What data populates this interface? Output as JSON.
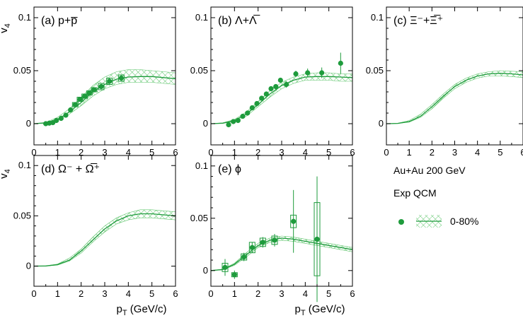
{
  "colors": {
    "data": "#1e9b3c",
    "band": "#5cc46a"
  },
  "axis_labels": {
    "ylabel": "v",
    "ylabel_sub": "4",
    "xlabel_main": "p",
    "xlabel_sub": "T",
    "xlabel_unit": " (GeV/c)"
  },
  "legend": {
    "system": "Au+Au 200 GeV",
    "header": "Exp QCM",
    "entry": "0-80%"
  },
  "chart_data": [
    {
      "type": "scatter",
      "panel": "a",
      "label": "(a) p+p̅",
      "xlim": [
        0,
        6
      ],
      "ylim": [
        -0.02,
        0.11
      ],
      "xticks": [
        0,
        1,
        2,
        3,
        4,
        5,
        6
      ],
      "yticks": [
        0,
        0.05,
        0.1
      ],
      "ytick_labels": [
        "0",
        "0.05",
        "0.1"
      ],
      "points": [
        {
          "x": 0.5,
          "y": 0.0,
          "err": 0.001,
          "sys": 0
        },
        {
          "x": 0.65,
          "y": 0.0005,
          "err": 0.001,
          "sys": 0
        },
        {
          "x": 0.8,
          "y": 0.001,
          "err": 0.001,
          "sys": 0
        },
        {
          "x": 0.95,
          "y": 0.003,
          "err": 0.001,
          "sys": 0
        },
        {
          "x": 1.15,
          "y": 0.005,
          "err": 0.001,
          "sys": 0
        },
        {
          "x": 1.35,
          "y": 0.008,
          "err": 0.001,
          "sys": 0
        },
        {
          "x": 1.55,
          "y": 0.013,
          "err": 0.001,
          "sys": 0
        },
        {
          "x": 1.75,
          "y": 0.018,
          "err": 0.001,
          "sys": 0.002
        },
        {
          "x": 1.95,
          "y": 0.023,
          "err": 0.001,
          "sys": 0.002
        },
        {
          "x": 2.15,
          "y": 0.026,
          "err": 0.001,
          "sys": 0.002
        },
        {
          "x": 2.35,
          "y": 0.029,
          "err": 0.002,
          "sys": 0.002
        },
        {
          "x": 2.55,
          "y": 0.032,
          "err": 0.002,
          "sys": 0.002
        },
        {
          "x": 2.85,
          "y": 0.035,
          "err": 0.002,
          "sys": 0.003
        },
        {
          "x": 3.2,
          "y": 0.04,
          "err": 0.003,
          "sys": 0.003
        },
        {
          "x": 3.7,
          "y": 0.043,
          "err": 0.003,
          "sys": 0.003
        }
      ],
      "curve": {
        "x": [
          0,
          0.5,
          1,
          1.5,
          2,
          2.5,
          3,
          3.5,
          4,
          4.5,
          5,
          5.5,
          6
        ],
        "y": [
          0,
          0.0008,
          0.004,
          0.011,
          0.02,
          0.03,
          0.037,
          0.042,
          0.044,
          0.0445,
          0.0445,
          0.0435,
          0.0425
        ]
      },
      "band": {
        "x": [
          0,
          0.5,
          1,
          1.5,
          2,
          2.5,
          3,
          3.5,
          4,
          4.5,
          5,
          5.5,
          6
        ],
        "lo": [
          0,
          0.0005,
          0.003,
          0.009,
          0.017,
          0.026,
          0.033,
          0.037,
          0.039,
          0.039,
          0.039,
          0.038,
          0.037
        ],
        "hi": [
          0,
          0.0012,
          0.006,
          0.014,
          0.025,
          0.036,
          0.044,
          0.049,
          0.051,
          0.051,
          0.05,
          0.049,
          0.048
        ]
      }
    },
    {
      "type": "scatter",
      "panel": "b",
      "label": "(b) Λ+Λ̅",
      "xlim": [
        0,
        6
      ],
      "ylim": [
        -0.02,
        0.11
      ],
      "xticks": [
        0,
        1,
        2,
        3,
        4,
        5,
        6
      ],
      "yticks": [
        0,
        0.05,
        0.1
      ],
      "ytick_labels": [
        "0",
        "0.05",
        "0.1"
      ],
      "points": [
        {
          "x": 0.75,
          "y": -0.001,
          "err": 0.002,
          "sys": 0
        },
        {
          "x": 0.95,
          "y": 0.002,
          "err": 0.001,
          "sys": 0
        },
        {
          "x": 1.15,
          "y": 0.003,
          "err": 0.001,
          "sys": 0
        },
        {
          "x": 1.35,
          "y": 0.007,
          "err": 0.001,
          "sys": 0
        },
        {
          "x": 1.55,
          "y": 0.01,
          "err": 0.001,
          "sys": 0
        },
        {
          "x": 1.75,
          "y": 0.015,
          "err": 0.001,
          "sys": 0
        },
        {
          "x": 1.95,
          "y": 0.019,
          "err": 0.001,
          "sys": 0
        },
        {
          "x": 2.15,
          "y": 0.024,
          "err": 0.001,
          "sys": 0
        },
        {
          "x": 2.35,
          "y": 0.028,
          "err": 0.001,
          "sys": 0
        },
        {
          "x": 2.55,
          "y": 0.033,
          "err": 0.001,
          "sys": 0
        },
        {
          "x": 2.75,
          "y": 0.035,
          "err": 0.002,
          "sys": 0
        },
        {
          "x": 2.95,
          "y": 0.041,
          "err": 0.002,
          "sys": 0
        },
        {
          "x": 3.2,
          "y": 0.037,
          "err": 0.003,
          "sys": 0
        },
        {
          "x": 3.6,
          "y": 0.047,
          "err": 0.003,
          "sys": 0
        },
        {
          "x": 4.1,
          "y": 0.048,
          "err": 0.004,
          "sys": 0
        },
        {
          "x": 4.7,
          "y": 0.048,
          "err": 0.005,
          "sys": 0
        },
        {
          "x": 5.5,
          "y": 0.057,
          "err": 0.01,
          "sys": 0
        }
      ],
      "curve": {
        "x": [
          0,
          0.5,
          1,
          1.5,
          2,
          2.5,
          3,
          3.5,
          4,
          4.5,
          5,
          5.5,
          6
        ],
        "y": [
          0,
          0.0005,
          0.003,
          0.009,
          0.018,
          0.028,
          0.036,
          0.041,
          0.044,
          0.0445,
          0.0445,
          0.044,
          0.0435
        ]
      },
      "band": {
        "x": [
          0,
          0.5,
          1,
          1.5,
          2,
          2.5,
          3,
          3.5,
          4,
          4.5,
          5,
          5.5,
          6
        ],
        "lo": [
          0,
          0.0003,
          0.002,
          0.007,
          0.016,
          0.025,
          0.033,
          0.038,
          0.041,
          0.041,
          0.041,
          0.04,
          0.04
        ],
        "hi": [
          0,
          0.0008,
          0.004,
          0.011,
          0.021,
          0.031,
          0.039,
          0.044,
          0.047,
          0.048,
          0.048,
          0.047,
          0.047
        ]
      }
    },
    {
      "type": "line",
      "panel": "c",
      "label": "(c) Ξ⁻+Ξ̅⁺",
      "xlim": [
        0,
        6
      ],
      "ylim": [
        -0.02,
        0.11
      ],
      "xticks": [
        0,
        1,
        2,
        3,
        4,
        5,
        6
      ],
      "yticks": [
        0,
        0.05,
        0.1
      ],
      "ytick_labels": [
        "0",
        "0.05",
        "0.1"
      ],
      "points": [],
      "curve": {
        "x": [
          0,
          0.5,
          1,
          1.5,
          2,
          2.5,
          3,
          3.5,
          4,
          4.5,
          5,
          5.5,
          6
        ],
        "y": [
          0,
          0.0003,
          0.002,
          0.007,
          0.016,
          0.026,
          0.035,
          0.041,
          0.045,
          0.047,
          0.0475,
          0.047,
          0.046
        ]
      },
      "band": {
        "x": [
          0,
          0.5,
          1,
          1.5,
          2,
          2.5,
          3,
          3.5,
          4,
          4.5,
          5,
          5.5,
          6
        ],
        "lo": [
          0,
          0.0002,
          0.0015,
          0.006,
          0.014,
          0.024,
          0.033,
          0.039,
          0.043,
          0.045,
          0.045,
          0.0445,
          0.0435
        ],
        "hi": [
          0,
          0.0005,
          0.003,
          0.009,
          0.018,
          0.028,
          0.037,
          0.043,
          0.047,
          0.049,
          0.05,
          0.0495,
          0.049
        ]
      }
    },
    {
      "type": "line",
      "panel": "d",
      "label": "(d) Ω⁻ + Ω̅⁺",
      "xlim": [
        0,
        6
      ],
      "ylim": [
        -0.02,
        0.11
      ],
      "xticks": [
        0,
        1,
        2,
        3,
        4,
        5,
        6
      ],
      "yticks": [
        0,
        0.05,
        0.1
      ],
      "ytick_labels": [
        "0",
        "0.05",
        "0.1"
      ],
      "points": [],
      "curve": {
        "x": [
          0,
          0.5,
          1,
          1.5,
          2,
          2.5,
          3,
          3.5,
          4,
          4.5,
          5,
          5.5,
          6
        ],
        "y": [
          0,
          0.0002,
          0.0015,
          0.006,
          0.015,
          0.026,
          0.037,
          0.045,
          0.05,
          0.052,
          0.052,
          0.051,
          0.05
        ]
      },
      "band": {
        "x": [
          0,
          0.5,
          1,
          1.5,
          2,
          2.5,
          3,
          3.5,
          4,
          4.5,
          5,
          5.5,
          6
        ],
        "lo": [
          0,
          0.0001,
          0.001,
          0.005,
          0.013,
          0.024,
          0.034,
          0.042,
          0.046,
          0.048,
          0.048,
          0.047,
          0.046
        ],
        "hi": [
          0,
          0.0004,
          0.002,
          0.008,
          0.017,
          0.029,
          0.04,
          0.048,
          0.053,
          0.056,
          0.056,
          0.055,
          0.054
        ]
      }
    },
    {
      "type": "scatter",
      "panel": "e",
      "label": "(e) ϕ",
      "xlim": [
        0,
        6
      ],
      "ylim": [
        -0.015,
        0.11
      ],
      "xticks": [
        0,
        1,
        2,
        3,
        4,
        5,
        6
      ],
      "yticks": [
        0,
        0.05,
        0.1
      ],
      "ytick_labels": [
        "0",
        "0.05",
        "0.1"
      ],
      "points": [
        {
          "x": 0.6,
          "y": 0.003,
          "err": 0.008,
          "sys": 0.004
        },
        {
          "x": 1.0,
          "y": -0.004,
          "err": 0.004,
          "sys": 0.002
        },
        {
          "x": 1.4,
          "y": 0.013,
          "err": 0.004,
          "sys": 0.003
        },
        {
          "x": 1.75,
          "y": 0.022,
          "err": 0.005,
          "sys": 0.005
        },
        {
          "x": 2.2,
          "y": 0.027,
          "err": 0.005,
          "sys": 0.004
        },
        {
          "x": 2.7,
          "y": 0.029,
          "err": 0.006,
          "sys": 0.004
        },
        {
          "x": 3.5,
          "y": 0.047,
          "err": 0.03,
          "sys": 0.006
        },
        {
          "x": 4.5,
          "y": 0.03,
          "err": 0.06,
          "sys": 0.035
        }
      ],
      "curve": {
        "x": [
          0,
          0.5,
          1,
          1.5,
          2,
          2.5,
          3,
          3.5,
          4,
          4.5,
          5,
          5.5,
          6
        ],
        "y": [
          0,
          0.001,
          0.006,
          0.015,
          0.024,
          0.029,
          0.031,
          0.03,
          0.028,
          0.026,
          0.024,
          0.022,
          0.02
        ]
      },
      "band": {
        "x": [
          0,
          0.5,
          1,
          1.5,
          2,
          2.5,
          3,
          3.5,
          4,
          4.5,
          5,
          5.5,
          6
        ],
        "lo": [
          0,
          0.0007,
          0.005,
          0.013,
          0.022,
          0.027,
          0.029,
          0.028,
          0.026,
          0.024,
          0.022,
          0.02,
          0.018
        ],
        "hi": [
          0,
          0.0013,
          0.007,
          0.017,
          0.026,
          0.031,
          0.033,
          0.032,
          0.03,
          0.028,
          0.026,
          0.024,
          0.022
        ]
      }
    }
  ]
}
